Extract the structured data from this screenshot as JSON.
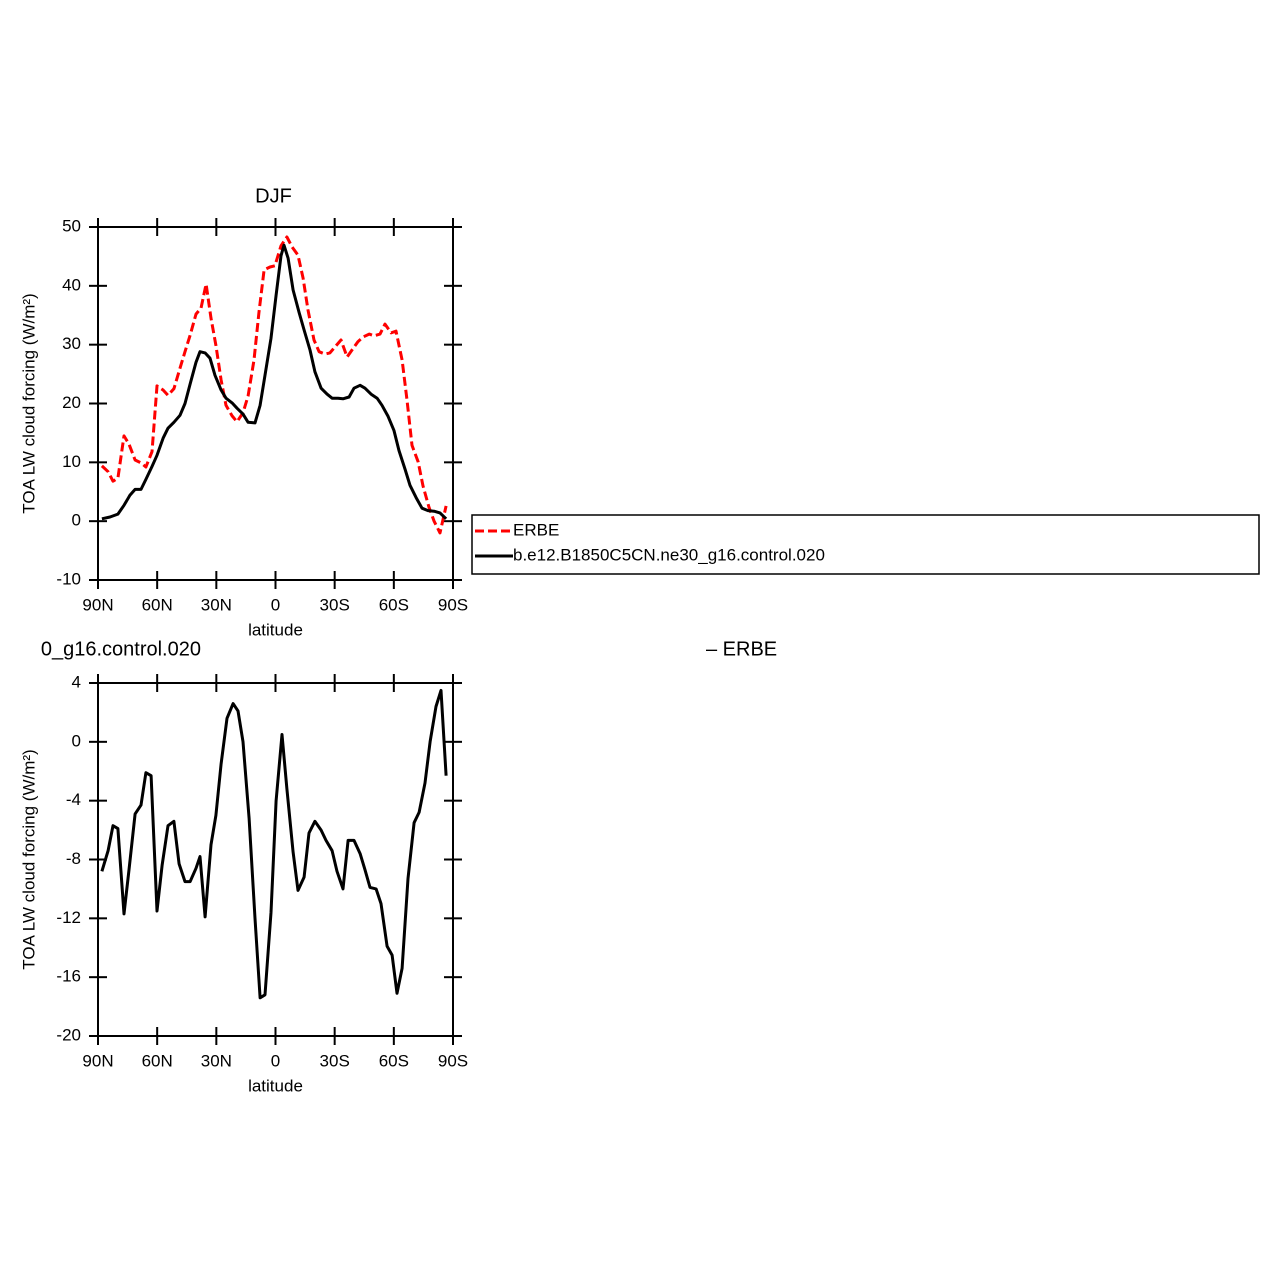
{
  "chart_data": [
    {
      "type": "line",
      "title": "DJF",
      "xlabel": "latitude",
      "ylabel": "TOA LW cloud forcing (W/m²)",
      "xlim": [
        90,
        -90
      ],
      "ylim": [
        -10,
        50
      ],
      "xticks": [
        {
          "value": 90,
          "label": "90N"
        },
        {
          "value": 60,
          "label": "60N"
        },
        {
          "value": 30,
          "label": "30N"
        },
        0,
        {
          "value": -30,
          "label": "30S"
        },
        {
          "value": -60,
          "label": "60S"
        },
        {
          "value": -90,
          "label": "90S"
        }
      ],
      "yticks": [
        -10,
        0,
        10,
        20,
        30,
        40,
        50
      ],
      "legend": "right",
      "series": [
        {
          "name": "ERBE",
          "color": "#ff0000",
          "dashed": true,
          "x": [
            88.0,
            84.9,
            82.4,
            79.9,
            76.8,
            74.3,
            71.2,
            68.2,
            65.7,
            62.6,
            60.1,
            57.0,
            54.5,
            51.5,
            48.4,
            45.9,
            43.3,
            40.3,
            37.8,
            35.2,
            32.7,
            30.2,
            27.6,
            25.1,
            22.0,
            19.5,
            16.5,
            13.9,
            10.9,
            8.4,
            5.8,
            2.8,
            0.3,
            -2.8,
            -5.8,
            -8.4,
            -11.4,
            -14.0,
            -16.5,
            -19.5,
            -22.1,
            -25.1,
            -27.6,
            -30.7,
            -33.2,
            -36.3,
            -38.8,
            -41.8,
            -44.4,
            -47.5,
            -50.0,
            -53.0,
            -55.5,
            -58.6,
            -61.1,
            -64.2,
            -66.7,
            -69.2,
            -72.3,
            -74.8,
            -77.8,
            -80.4,
            -83.4,
            -86.5
          ],
          "values": [
            9.4,
            8.4,
            6.8,
            7.3,
            14.5,
            13.1,
            10.4,
            9.9,
            9.2,
            11.8,
            23.0,
            22.3,
            21.4,
            22.5,
            26.0,
            28.8,
            31.6,
            35.2,
            36.2,
            40.3,
            34.5,
            29.9,
            24.0,
            19.7,
            17.9,
            16.9,
            18.4,
            21.3,
            27.4,
            35.4,
            42.7,
            43.2,
            43.4,
            46.8,
            48.3,
            46.6,
            45.2,
            41.3,
            35.9,
            30.8,
            28.8,
            28.4,
            28.6,
            29.8,
            30.8,
            27.9,
            29.1,
            30.5,
            31.3,
            31.8,
            31.5,
            31.8,
            33.5,
            32.0,
            32.3,
            27.4,
            20.6,
            12.9,
            10.1,
            6.0,
            2.4,
            0.0,
            -2.0,
            2.6
          ]
        },
        {
          "name": "b.e12.B1850C5CN.ne30_g16.control.020",
          "color": "#000000",
          "dashed": false,
          "x": [
            88.0,
            83.9,
            79.9,
            76.8,
            73.8,
            71.2,
            68.2,
            65.7,
            62.6,
            60.1,
            57.0,
            54.5,
            51.5,
            48.4,
            45.9,
            43.3,
            40.3,
            38.3,
            35.7,
            33.2,
            30.7,
            27.6,
            25.1,
            22.0,
            19.5,
            16.5,
            13.9,
            10.4,
            7.8,
            5.3,
            2.3,
            -0.3,
            -2.8,
            -4.3,
            -6.4,
            -8.9,
            -12.0,
            -14.5,
            -17.5,
            -20.0,
            -23.1,
            -26.1,
            -28.7,
            -31.7,
            -34.2,
            -37.3,
            -39.8,
            -42.9,
            -45.4,
            -48.4,
            -51.5,
            -54.0,
            -57.1,
            -60.1,
            -62.6,
            -65.7,
            -68.2,
            -71.3,
            -74.3,
            -77.3,
            -80.4,
            -83.4,
            -86.5
          ],
          "values": [
            0.4,
            0.7,
            1.2,
            2.7,
            4.4,
            5.4,
            5.4,
            7.1,
            9.3,
            11.2,
            14.1,
            15.8,
            16.8,
            18.0,
            20.0,
            23.3,
            27.0,
            28.8,
            28.6,
            27.7,
            24.8,
            22.3,
            20.9,
            20.1,
            19.2,
            18.2,
            16.8,
            16.7,
            19.7,
            24.8,
            31.1,
            38.4,
            45.1,
            46.9,
            44.7,
            39.3,
            35.4,
            32.5,
            29.1,
            25.4,
            22.6,
            21.6,
            20.9,
            20.9,
            20.8,
            21.1,
            22.6,
            23.1,
            22.6,
            21.6,
            20.9,
            19.7,
            17.8,
            15.4,
            12.0,
            8.8,
            6.1,
            4.0,
            2.2,
            1.8,
            1.7,
            1.4,
            0.4
          ]
        }
      ]
    },
    {
      "type": "line",
      "title": [
        "0_g16.control.020",
        "– ERBE"
      ],
      "xlabel": "latitude",
      "ylabel": "TOA LW cloud forcing (W/m²)",
      "xlim": [
        90,
        -90
      ],
      "ylim": [
        -20,
        4
      ],
      "xticks": [
        {
          "value": 90,
          "label": "90N"
        },
        {
          "value": 60,
          "label": "60N"
        },
        {
          "value": 30,
          "label": "30N"
        },
        0,
        {
          "value": -30,
          "label": "30S"
        },
        {
          "value": -60,
          "label": "60S"
        },
        {
          "value": -90,
          "label": "90S"
        }
      ],
      "yticks": [
        -20,
        -16,
        -12,
        -8,
        -4,
        0,
        4
      ],
      "series": [
        {
          "color": "#000000",
          "dashed": false,
          "x": [
            88.0,
            84.9,
            82.4,
            79.9,
            76.8,
            74.3,
            71.2,
            68.2,
            65.7,
            63.1,
            60.1,
            57.5,
            54.5,
            51.5,
            48.9,
            45.9,
            43.3,
            40.3,
            38.3,
            35.7,
            32.7,
            30.2,
            27.6,
            24.6,
            21.5,
            19.0,
            16.5,
            13.4,
            10.4,
            7.8,
            5.3,
            2.3,
            -0.3,
            -3.3,
            -5.8,
            -8.9,
            -11.4,
            -14.5,
            -17.0,
            -20.0,
            -23.1,
            -25.6,
            -28.7,
            -31.2,
            -34.2,
            -36.8,
            -39.8,
            -42.9,
            -45.4,
            -47.9,
            -51.0,
            -53.5,
            -56.6,
            -59.1,
            -61.6,
            -64.2,
            -67.2,
            -70.3,
            -72.8,
            -75.8,
            -78.4,
            -81.4,
            -83.9,
            -86.5
          ],
          "values": [
            -8.8,
            -7.4,
            -5.7,
            -5.9,
            -11.7,
            -8.7,
            -4.9,
            -4.3,
            -2.1,
            -2.3,
            -11.5,
            -8.4,
            -5.7,
            -5.4,
            -8.3,
            -9.5,
            -9.5,
            -8.6,
            -7.8,
            -11.9,
            -7.0,
            -5.0,
            -1.5,
            1.6,
            2.6,
            2.1,
            0.0,
            -5.2,
            -12.0,
            -17.4,
            -17.2,
            -11.6,
            -4.0,
            0.5,
            -3.2,
            -7.5,
            -10.1,
            -9.2,
            -6.2,
            -5.4,
            -6.0,
            -6.7,
            -7.4,
            -8.8,
            -10.0,
            -6.7,
            -6.7,
            -7.6,
            -8.7,
            -9.9,
            -10.0,
            -11.0,
            -13.9,
            -14.5,
            -17.1,
            -15.4,
            -9.3,
            -5.5,
            -4.8,
            -2.8,
            0.0,
            2.4,
            3.5,
            -2.3
          ]
        }
      ]
    }
  ]
}
